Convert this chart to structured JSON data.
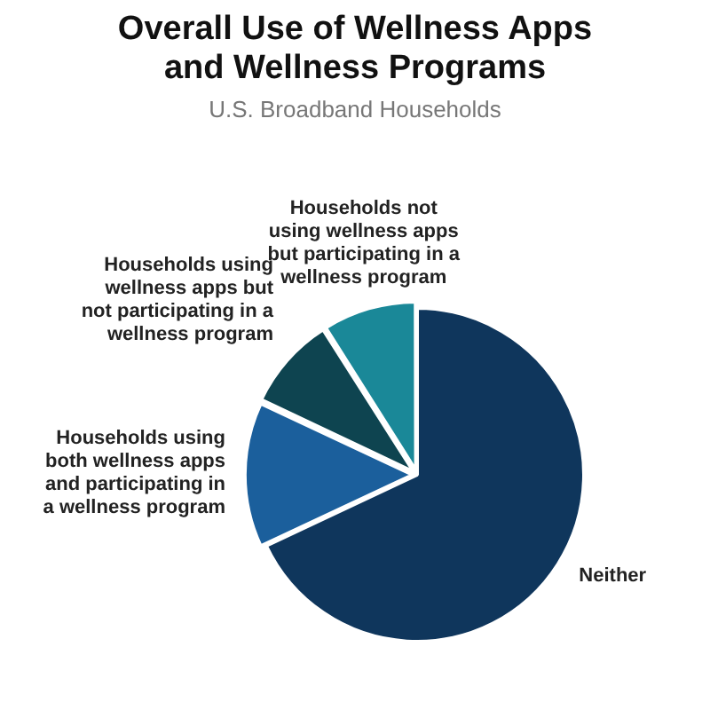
{
  "chart_data": {
    "type": "pie",
    "title": "Overall Use of Wellness Apps and Wellness Programs",
    "subtitle": "U.S. Broadband Households",
    "categories": [
      "Neither",
      "Households using both wellness apps and participating in a wellness program",
      "Households using wellness apps but not participating in a wellness program",
      "Households not using wellness apps but participating in a wellness program"
    ],
    "values": [
      68,
      14,
      9,
      9
    ],
    "colors": [
      "#0f365c",
      "#1b5f9c",
      "#0e4450",
      "#1a8898"
    ],
    "legend": false
  }
}
